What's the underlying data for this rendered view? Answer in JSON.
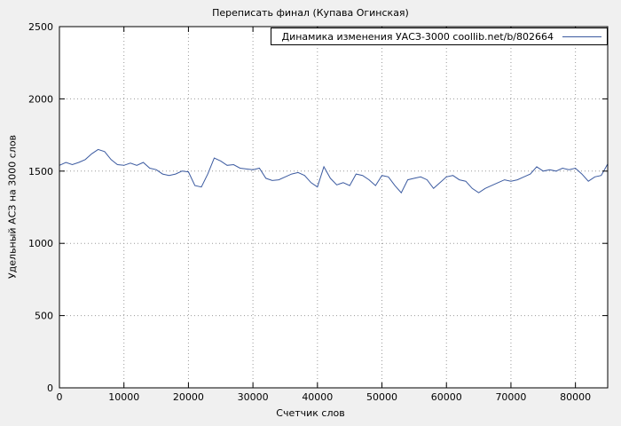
{
  "title": "Переписать финал (Купава Огинская)",
  "colors": {
    "background": "#f0f0f0",
    "plot_background": "#ffffff",
    "line": "#3b5aa0",
    "grid": "#9a9a9a",
    "axis": "#000000"
  },
  "chart_data": {
    "type": "line",
    "title": "Переписать финал (Купава Огинская)",
    "xlabel": "Счетчик слов",
    "ylabel": "Удельный АСЗ на 3000 слов",
    "xlim": [
      0,
      85000
    ],
    "ylim": [
      0,
      2500
    ],
    "xticks": [
      0,
      10000,
      20000,
      30000,
      40000,
      50000,
      60000,
      70000,
      80000
    ],
    "yticks": [
      0,
      500,
      1000,
      1500,
      2000,
      2500
    ],
    "grid": true,
    "legend_position": "top-right-inside",
    "series": [
      {
        "name": "Динамика изменения УАСЗ-3000 coollib.net/b/802664",
        "color": "#3b5aa0",
        "x": [
          0,
          1000,
          2000,
          3000,
          4000,
          5000,
          6000,
          7000,
          8000,
          9000,
          10000,
          11000,
          12000,
          13000,
          14000,
          15000,
          16000,
          17000,
          18000,
          19000,
          20000,
          21000,
          22000,
          23000,
          24000,
          25000,
          26000,
          27000,
          28000,
          29000,
          30000,
          31000,
          32000,
          33000,
          34000,
          35000,
          36000,
          37000,
          38000,
          39000,
          40000,
          41000,
          42000,
          43000,
          44000,
          45000,
          46000,
          47000,
          48000,
          49000,
          50000,
          51000,
          52000,
          53000,
          54000,
          55000,
          56000,
          57000,
          58000,
          59000,
          60000,
          61000,
          62000,
          63000,
          64000,
          65000,
          66000,
          67000,
          68000,
          69000,
          70000,
          71000,
          72000,
          73000,
          74000,
          75000,
          76000,
          77000,
          78000,
          79000,
          80000,
          81000,
          82000,
          83000,
          84000,
          85000
        ],
        "values": [
          1540,
          1560,
          1545,
          1560,
          1580,
          1620,
          1650,
          1635,
          1580,
          1545,
          1540,
          1555,
          1540,
          1560,
          1520,
          1510,
          1480,
          1470,
          1480,
          1500,
          1495,
          1400,
          1390,
          1480,
          1590,
          1570,
          1540,
          1545,
          1520,
          1515,
          1510,
          1520,
          1450,
          1435,
          1440,
          1460,
          1480,
          1490,
          1470,
          1420,
          1390,
          1530,
          1450,
          1405,
          1420,
          1400,
          1480,
          1470,
          1440,
          1400,
          1470,
          1460,
          1400,
          1350,
          1440,
          1450,
          1460,
          1440,
          1380,
          1420,
          1460,
          1470,
          1440,
          1430,
          1380,
          1350,
          1380,
          1400,
          1420,
          1440,
          1430,
          1440,
          1460,
          1480,
          1530,
          1500,
          1510,
          1500,
          1520,
          1510,
          1520,
          1480,
          1430,
          1460,
          1470,
          1550
        ]
      }
    ]
  }
}
